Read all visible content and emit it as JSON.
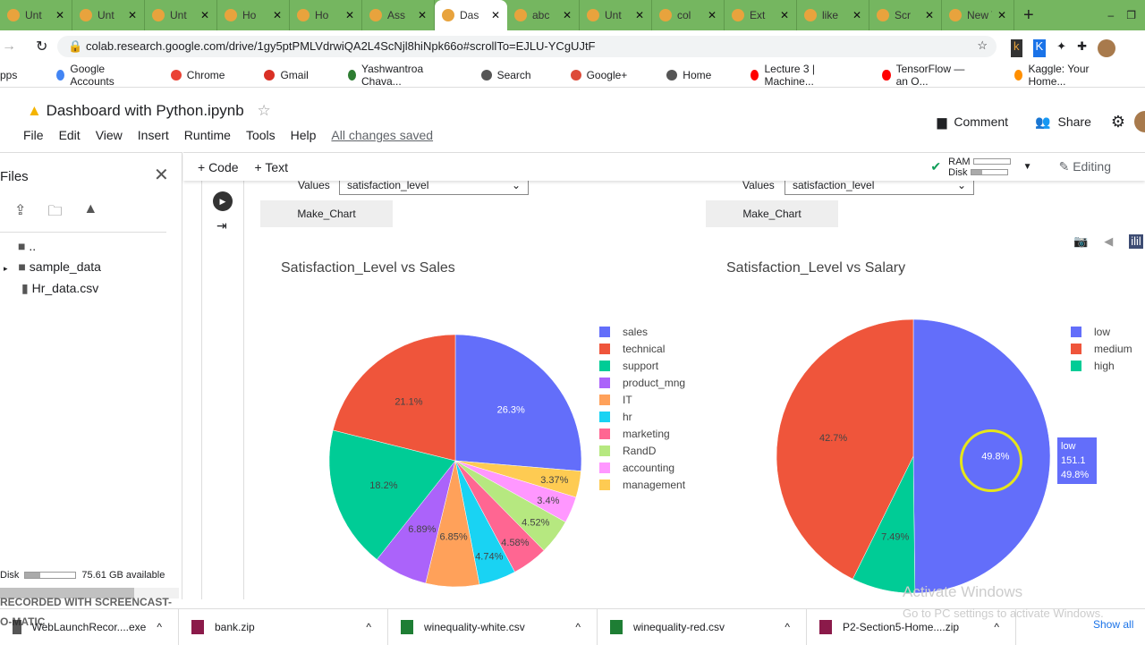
{
  "browser": {
    "tabs": [
      "Unt",
      "Unt",
      "Unt",
      "Ho",
      "Ho",
      "Ass",
      "Das",
      "abc",
      "Unt",
      "col",
      "Ext",
      "like",
      "Scr",
      "New Tab"
    ],
    "active_tab": 6,
    "url": "colab.research.google.com/drive/1gy5ptPMLVdrwiQA2L4ScNjl8hiNpk66o#scrollTo=EJLU-YCgUJtF",
    "bookmarks": [
      "pps",
      "Google Accounts",
      "Chrome",
      "Gmail",
      "Yashwantroa Chava...",
      "Search",
      "Google+",
      "Home",
      "Lecture 3 | Machine...",
      "TensorFlow — an O...",
      "Kaggle: Your Home..."
    ]
  },
  "notebook": {
    "title": "Dashboard with Python.ipynb",
    "menu": [
      "File",
      "Edit",
      "View",
      "Insert",
      "Runtime",
      "Tools",
      "Help"
    ],
    "saved": "All changes saved",
    "comment": "Comment",
    "share": "Share",
    "add_code": "+ Code",
    "add_text": "+ Text",
    "ram": "RAM",
    "disk": "Disk",
    "editing": "Editing"
  },
  "sidebar": {
    "title": "Files",
    "items": [
      "..",
      "sample_data",
      "Hr_data.csv"
    ],
    "disk_label": "Disk",
    "disk_available": "75.61 GB available"
  },
  "widgets": [
    {
      "values_label": "Values",
      "value": "satisfaction_level",
      "button": "Make_Chart"
    },
    {
      "values_label": "Values",
      "value": "satisfaction_level",
      "button": "Make_Chart"
    }
  ],
  "chart_data": [
    {
      "type": "pie",
      "title": "Satisfaction_Level vs Sales",
      "labels": [
        "sales",
        "technical",
        "support",
        "product_mng",
        "IT",
        "hr",
        "marketing",
        "RandD",
        "accounting",
        "management"
      ],
      "values": [
        26.3,
        21.1,
        18.2,
        6.89,
        6.85,
        4.74,
        4.58,
        4.52,
        3.4,
        3.37
      ],
      "text": [
        "26.3%",
        "21.1%",
        "18.2%",
        "6.89%",
        "6.85%",
        "4.74%",
        "4.58%",
        "4.52%",
        "3.4%",
        "3.37%"
      ],
      "colors": [
        "#636efa",
        "#ef553b",
        "#00cc96",
        "#ab63fa",
        "#ffa15a",
        "#19d3f3",
        "#ff6692",
        "#b6e880",
        "#ff97ff",
        "#fecb52"
      ],
      "legend": "right"
    },
    {
      "type": "pie",
      "title": "Satisfaction_Level vs Salary",
      "labels": [
        "low",
        "medium",
        "high"
      ],
      "values": [
        49.8,
        42.7,
        7.49
      ],
      "text": [
        "49.8%",
        "42.7%",
        "7.49%"
      ],
      "colors": [
        "#636efa",
        "#ef553b",
        "#00cc96"
      ],
      "legend": "right",
      "hover": {
        "label": "low",
        "value": "151.1",
        "percent": "49.8%"
      }
    }
  ],
  "watermark": {
    "line1": "Activate Windows",
    "line2": "Go to PC settings to activate Windows."
  },
  "downloads": {
    "items": [
      "WebLaunchRecor....exe",
      "bank.zip",
      "winequality-white.csv",
      "winequality-red.csv",
      "P2-Section5-Home....zip"
    ],
    "show_all": "Show all"
  },
  "recorder": "RECORDED WITH SCREENCAST-O-MATIC"
}
